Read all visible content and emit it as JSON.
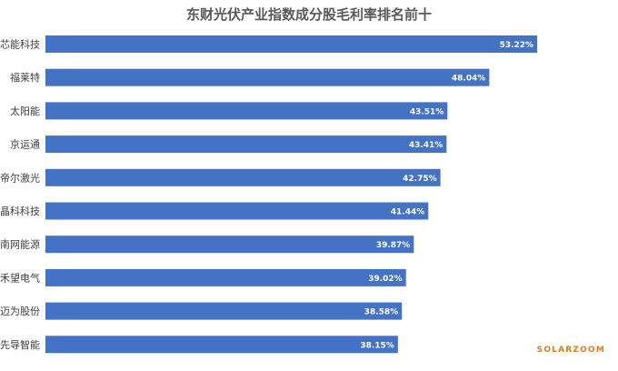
{
  "chart_data": {
    "type": "bar",
    "orientation": "horizontal",
    "title": "东财光伏产业指数成分股毛利率排名前十",
    "categories": [
      "芯能科技",
      "福莱特",
      "太阳能",
      "京运通",
      "帝尔激光",
      "晶科科技",
      "南网能源",
      "禾望电气",
      "迈为股份",
      "先导智能"
    ],
    "values": [
      53.22,
      48.04,
      43.51,
      43.41,
      42.75,
      41.44,
      39.87,
      39.02,
      38.58,
      38.15
    ],
    "value_labels": [
      "53.22%",
      "48.04%",
      "43.51%",
      "43.41%",
      "42.75%",
      "41.44%",
      "39.87%",
      "39.02%",
      "38.58%",
      "38.15%"
    ],
    "xlim": [
      0,
      60
    ],
    "bar_color": "#4472c4",
    "grid": false,
    "legend": "none"
  },
  "watermark": "SOLARZOOM"
}
